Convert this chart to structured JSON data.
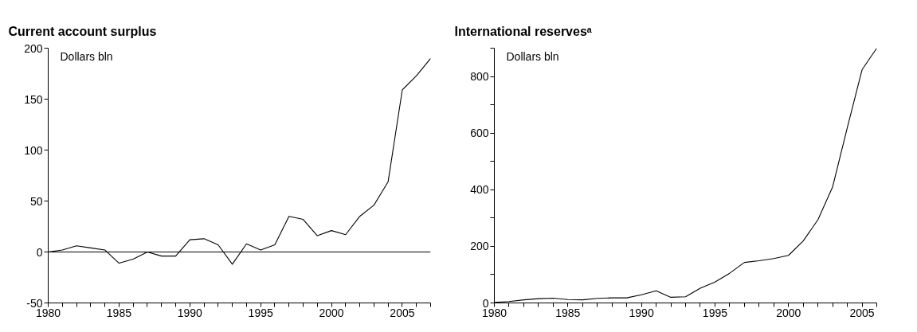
{
  "chart_data": [
    {
      "type": "line",
      "title": "Current account surplus",
      "ylabel": "Dollars bln",
      "x": [
        1980,
        1981,
        1982,
        1983,
        1984,
        1985,
        1986,
        1987,
        1988,
        1989,
        1990,
        1991,
        1992,
        1993,
        1994,
        1995,
        1996,
        1997,
        1998,
        1999,
        2000,
        2001,
        2002,
        2003,
        2004,
        2005,
        2006,
        2007
      ],
      "series": [
        {
          "color": "#000000",
          "values": [
            0,
            2,
            6,
            4,
            2,
            -11,
            -7,
            0,
            -4,
            -4,
            12,
            13,
            7,
            -12,
            8,
            2,
            7,
            35,
            32,
            16,
            21,
            17,
            35,
            46,
            69,
            159,
            173,
            190
          ]
        }
      ],
      "xlim": [
        1980,
        2007
      ],
      "xticks": [
        1980,
        {
          "value": 1981,
          "label": null
        },
        {
          "value": 1982,
          "label": null
        },
        {
          "value": 1983,
          "label": null
        },
        {
          "value": 1984,
          "label": null
        },
        1985,
        {
          "value": 1986,
          "label": null
        },
        {
          "value": 1987,
          "label": null
        },
        {
          "value": 1988,
          "label": null
        },
        {
          "value": 1989,
          "label": null
        },
        1990,
        {
          "value": 1991,
          "label": null
        },
        {
          "value": 1992,
          "label": null
        },
        {
          "value": 1993,
          "label": null
        },
        {
          "value": 1994,
          "label": null
        },
        1995,
        {
          "value": 1996,
          "label": null
        },
        {
          "value": 1997,
          "label": null
        },
        {
          "value": 1998,
          "label": null
        },
        {
          "value": 1999,
          "label": null
        },
        2000,
        {
          "value": 2001,
          "label": null
        },
        {
          "value": 2002,
          "label": null
        },
        {
          "value": 2003,
          "label": null
        },
        {
          "value": 2004,
          "label": null
        },
        2005,
        {
          "value": 2006,
          "label": null
        },
        {
          "value": 2007,
          "label": null
        }
      ],
      "ylim": [
        -50,
        200
      ],
      "yticks": [
        -50,
        0,
        50,
        100,
        150,
        200
      ],
      "ref_lines": [
        {
          "axis": "y",
          "value": 0,
          "color": "#000000"
        }
      ],
      "grid": false,
      "marker": "none",
      "line_style": "solid"
    },
    {
      "type": "line",
      "title": "International reservesᵃ",
      "ylabel": "Dollars bln",
      "x": [
        1980,
        1981,
        1982,
        1983,
        1984,
        1985,
        1986,
        1987,
        1988,
        1989,
        1990,
        1991,
        1992,
        1993,
        1994,
        1995,
        1996,
        1997,
        1998,
        1999,
        2000,
        2001,
        2002,
        2003,
        2004,
        2005,
        2006
      ],
      "series": [
        {
          "color": "#000000",
          "values": [
            2,
            5,
            11,
            15,
            17,
            12,
            11,
            16,
            18,
            18,
            29,
            43,
            20,
            22,
            52,
            74,
            105,
            143,
            149,
            157,
            168,
            219,
            294,
            410,
            620,
            824,
            900
          ]
        }
      ],
      "xlim": [
        1980,
        2006
      ],
      "xticks": [
        1980,
        {
          "value": 1981,
          "label": null
        },
        {
          "value": 1982,
          "label": null
        },
        {
          "value": 1983,
          "label": null
        },
        {
          "value": 1984,
          "label": null
        },
        1985,
        {
          "value": 1986,
          "label": null
        },
        {
          "value": 1987,
          "label": null
        },
        {
          "value": 1988,
          "label": null
        },
        {
          "value": 1989,
          "label": null
        },
        1990,
        {
          "value": 1991,
          "label": null
        },
        {
          "value": 1992,
          "label": null
        },
        {
          "value": 1993,
          "label": null
        },
        {
          "value": 1994,
          "label": null
        },
        1995,
        {
          "value": 1996,
          "label": null
        },
        {
          "value": 1997,
          "label": null
        },
        {
          "value": 1998,
          "label": null
        },
        {
          "value": 1999,
          "label": null
        },
        2000,
        {
          "value": 2001,
          "label": null
        },
        {
          "value": 2002,
          "label": null
        },
        {
          "value": 2003,
          "label": null
        },
        {
          "value": 2004,
          "label": null
        },
        2005,
        {
          "value": 2006,
          "label": null
        }
      ],
      "ylim": [
        0,
        900
      ],
      "yticks": [
        0,
        {
          "value": 100,
          "label": null
        },
        200,
        {
          "value": 300,
          "label": null
        },
        400,
        {
          "value": 500,
          "label": null
        },
        600,
        {
          "value": 700,
          "label": null
        },
        800,
        {
          "value": 900,
          "label": null
        }
      ],
      "grid": false,
      "marker": "none",
      "line_style": "solid"
    }
  ]
}
